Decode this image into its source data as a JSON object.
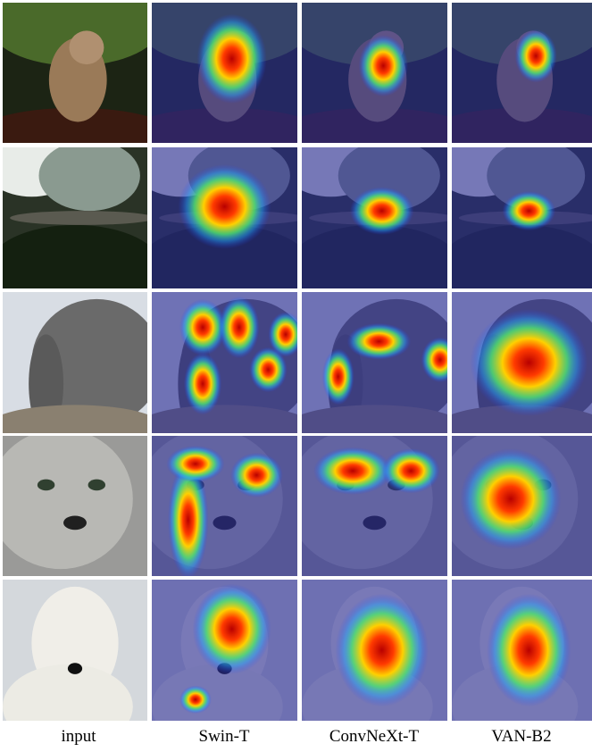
{
  "figure": {
    "columns": [
      "input",
      "Swin-T",
      "ConvNeXt-T",
      "VAN-B2"
    ]
  }
}
